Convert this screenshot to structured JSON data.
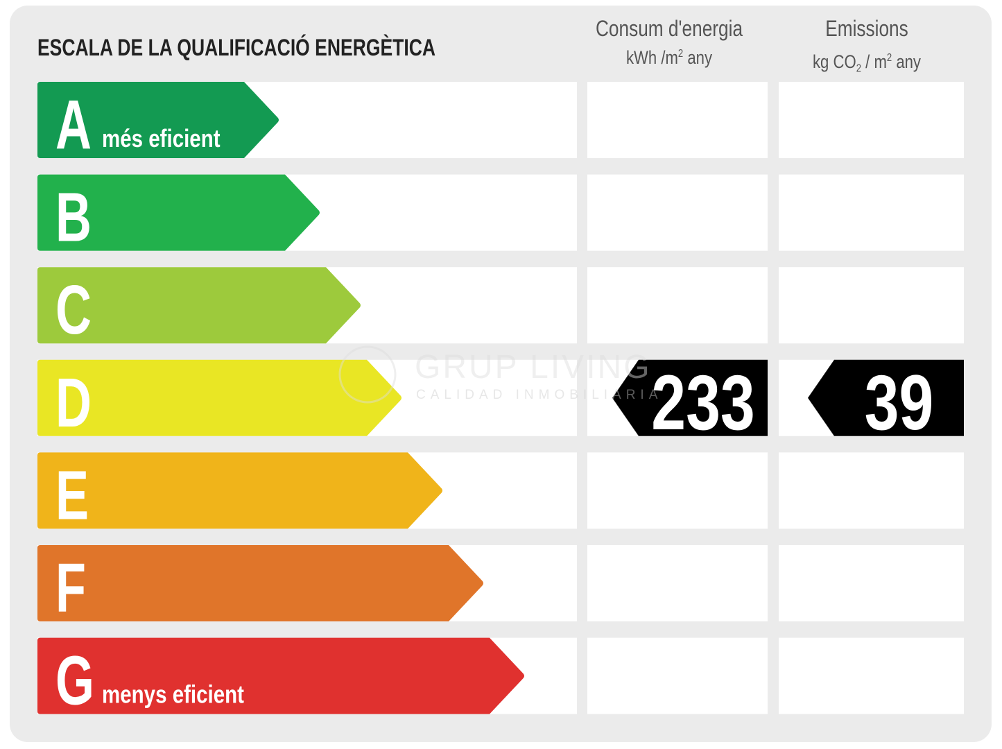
{
  "title": "ESCALA DE LA QUALIFICACIÓ ENERGÈTICA",
  "columns": [
    {
      "title": "Consum d'energia",
      "unit": [
        {
          "text": "kWh /m"
        },
        {
          "text": "2",
          "pos": "sup"
        },
        {
          "text": " any"
        }
      ]
    },
    {
      "title": "Emissions",
      "unit": [
        {
          "text": "kg CO"
        },
        {
          "text": "2",
          "pos": "sub"
        },
        {
          "text": " / m"
        },
        {
          "text": "2",
          "pos": "sup"
        },
        {
          "text": " any"
        }
      ]
    }
  ],
  "rows": [
    {
      "letter": "A",
      "label": "més eficient",
      "color": "#139a52"
    },
    {
      "letter": "B",
      "color": "#22b14c"
    },
    {
      "letter": "C",
      "color": "#9dca3c"
    },
    {
      "letter": "D",
      "color": "#e9e624",
      "consumption": "233",
      "emissions": "39"
    },
    {
      "letter": "E",
      "color": "#f0b41a"
    },
    {
      "letter": "F",
      "color": "#e0752a"
    },
    {
      "letter": "G",
      "label": "menys eficient",
      "color": "#e0312f"
    }
  ],
  "watermark": {
    "name": "GRUP LIVING",
    "tagline": "CALIDAD INMOBILIARIA"
  }
}
